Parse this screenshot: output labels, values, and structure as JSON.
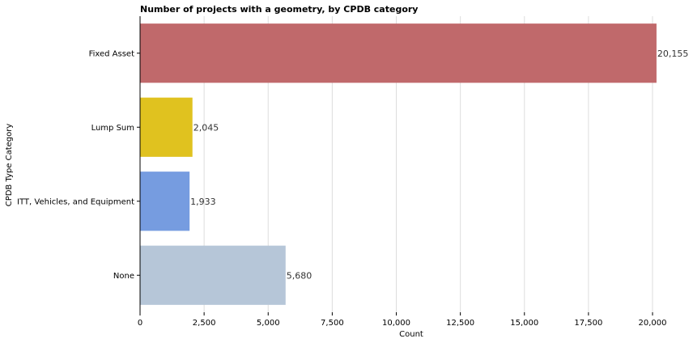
{
  "chart_data": {
    "type": "bar",
    "orientation": "horizontal",
    "title": "Number of projects with a geometry, by CPDB category",
    "xlabel": "Count",
    "ylabel": "CPDB Type Category",
    "categories": [
      "Fixed Asset",
      "Lump Sum",
      "ITT, Vehicles, and Equipment",
      "None"
    ],
    "values": [
      20155,
      2045,
      1933,
      5680
    ],
    "data_labels": [
      "20,155",
      "2,045",
      "1,933",
      "5,680"
    ],
    "colors": [
      "#c0696b",
      "#e0c21f",
      "#769ce0",
      "#b6c6d8"
    ],
    "xlim": [
      0,
      21200
    ],
    "xticks": [
      0,
      2500,
      5000,
      7500,
      10000,
      12500,
      15000,
      17500,
      20000
    ],
    "xtick_labels": [
      "0",
      "2,500",
      "5,000",
      "7,500",
      "10,000",
      "12,500",
      "15,000",
      "17,500",
      "20,000"
    ],
    "grid": "vertical",
    "legend": "none"
  }
}
